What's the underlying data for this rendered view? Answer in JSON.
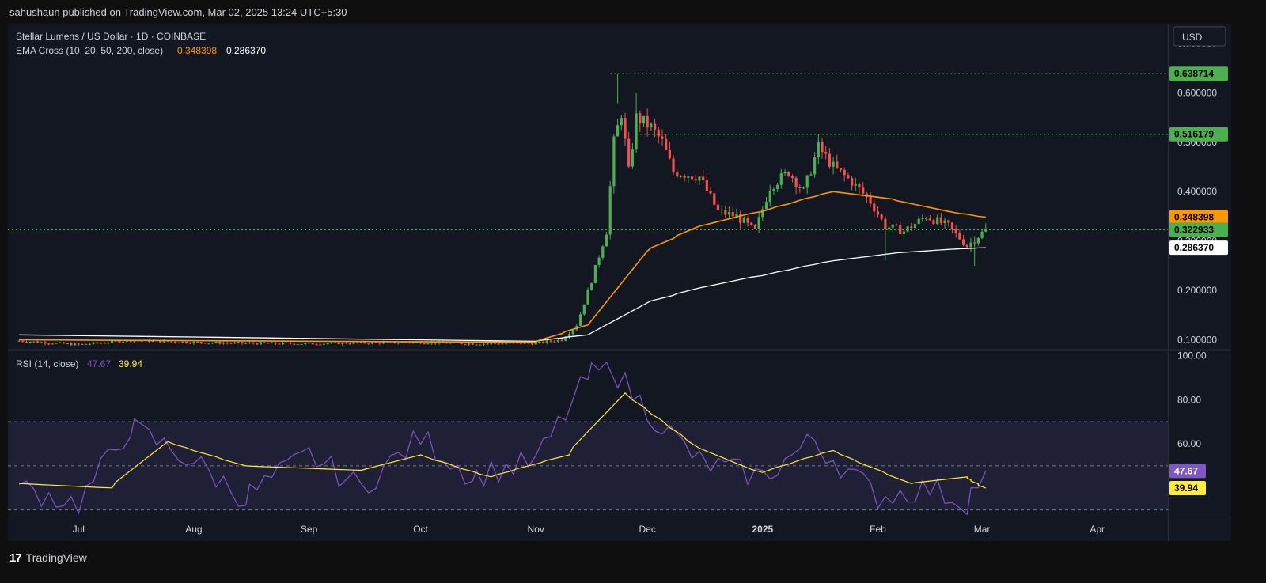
{
  "header": {
    "published": "sahushaun published on TradingView.com, Mar 02, 2025 13:24 UTC+5:30"
  },
  "footer": {
    "brand": "TradingView",
    "logo_glyph": "17"
  },
  "chart_data": {
    "type": "candlestick",
    "symbol_line": "Stellar Lumens / US Dollar · 1D · COINBASE",
    "indicator_label": "EMA Cross (10, 20, 50, 200, close)",
    "indicator_values": [
      "0.348398",
      "0.286370"
    ],
    "currency_button": "USD",
    "price_axis": {
      "ticks": [
        "0.700000",
        "0.600000",
        "0.500000",
        "0.400000",
        "0.300000",
        "0.200000",
        "0.100000"
      ],
      "range": [
        0.08,
        0.74
      ]
    },
    "price_tags": [
      {
        "label": "0.638714",
        "value": 0.638714,
        "color": "#4caf50",
        "text_color": "#000000"
      },
      {
        "label": "0.516179",
        "value": 0.516179,
        "color": "#4caf50",
        "text_color": "#000000"
      },
      {
        "label": "0.348398",
        "value": 0.348398,
        "color": "#ff9800",
        "text_color": "#000000"
      },
      {
        "label": "0.322933",
        "value": 0.322933,
        "color": "#4caf50",
        "text_color": "#000000"
      },
      {
        "label": "0.286370",
        "value": 0.28637,
        "color": "#ffffff",
        "text_color": "#000000"
      }
    ],
    "horizontal_levels": [
      0.638714,
      0.516179,
      0.322933
    ],
    "x_axis_labels": [
      "Jul",
      "Aug",
      "Sep",
      "Oct",
      "Nov",
      "Dec",
      "2025",
      "Feb",
      "Mar",
      "Apr"
    ],
    "ohlc_keypoints": [
      [
        "2024-06-15",
        0.098
      ],
      [
        "2024-07-01",
        0.09
      ],
      [
        "2024-07-15",
        0.099
      ],
      [
        "2024-08-01",
        0.095
      ],
      [
        "2024-08-15",
        0.093
      ],
      [
        "2024-09-01",
        0.092
      ],
      [
        "2024-09-15",
        0.094
      ],
      [
        "2024-10-01",
        0.095
      ],
      [
        "2024-10-15",
        0.092
      ],
      [
        "2024-11-01",
        0.093
      ],
      [
        "2024-11-08",
        0.1
      ],
      [
        "2024-11-12",
        0.13
      ],
      [
        "2024-11-16",
        0.22
      ],
      [
        "2024-11-20",
        0.32
      ],
      [
        "2024-11-22",
        0.5
      ],
      [
        "2024-11-24",
        0.56
      ],
      [
        "2024-11-26",
        0.44
      ],
      [
        "2024-11-28",
        0.55
      ],
      [
        "2024-12-02",
        0.53
      ],
      [
        "2024-12-05",
        0.5
      ],
      [
        "2024-12-08",
        0.44
      ],
      [
        "2024-12-15",
        0.43
      ],
      [
        "2024-12-20",
        0.36
      ],
      [
        "2024-12-25",
        0.35
      ],
      [
        "2024-12-30",
        0.32
      ],
      [
        "2025-01-03",
        0.41
      ],
      [
        "2025-01-08",
        0.44
      ],
      [
        "2025-01-12",
        0.4
      ],
      [
        "2025-01-16",
        0.49
      ],
      [
        "2025-01-20",
        0.45
      ],
      [
        "2025-01-25",
        0.42
      ],
      [
        "2025-01-30",
        0.38
      ],
      [
        "2025-02-03",
        0.33
      ],
      [
        "2025-02-08",
        0.32
      ],
      [
        "2025-02-14",
        0.35
      ],
      [
        "2025-02-20",
        0.33
      ],
      [
        "2025-02-25",
        0.29
      ],
      [
        "2025-02-28",
        0.31
      ],
      [
        "2025-03-02",
        0.322933
      ]
    ],
    "ema_50": [
      [
        "2024-06-15",
        0.1
      ],
      [
        "2024-11-01",
        0.095
      ],
      [
        "2024-11-15",
        0.13
      ],
      [
        "2024-12-01",
        0.28
      ],
      [
        "2024-12-15",
        0.33
      ],
      [
        "2025-01-01",
        0.36
      ],
      [
        "2025-01-20",
        0.4
      ],
      [
        "2025-02-05",
        0.385
      ],
      [
        "2025-02-20",
        0.36
      ],
      [
        "2025-03-02",
        0.348398
      ]
    ],
    "ema_200": [
      [
        "2024-06-15",
        0.11
      ],
      [
        "2024-11-01",
        0.097
      ],
      [
        "2024-11-15",
        0.11
      ],
      [
        "2024-12-01",
        0.175
      ],
      [
        "2024-12-15",
        0.205
      ],
      [
        "2025-01-01",
        0.23
      ],
      [
        "2025-01-20",
        0.26
      ],
      [
        "2025-02-05",
        0.275
      ],
      [
        "2025-02-20",
        0.283
      ],
      [
        "2025-03-02",
        0.28637
      ]
    ],
    "rsi": {
      "label": "RSI (14, close)",
      "values": [
        "47.67",
        "39.94"
      ],
      "axis_ticks": [
        "100.00",
        "80.00",
        "60.00"
      ],
      "tags": [
        {
          "label": "47.67",
          "value": 47.67,
          "color": "#7e57c2"
        },
        {
          "label": "39.94",
          "value": 39.94,
          "color": "#ffeb3b"
        }
      ],
      "bands": [
        70,
        50,
        30
      ],
      "range": [
        27,
        102
      ],
      "rsi_line": [
        [
          "2024-06-15",
          40
        ],
        [
          "2024-07-01",
          33
        ],
        [
          "2024-07-15",
          68
        ],
        [
          "2024-08-01",
          52
        ],
        [
          "2024-08-15",
          35
        ],
        [
          "2024-09-01",
          55
        ],
        [
          "2024-09-15",
          40
        ],
        [
          "2024-10-01",
          63
        ],
        [
          "2024-10-15",
          45
        ],
        [
          "2024-11-01",
          52
        ],
        [
          "2024-11-15",
          90
        ],
        [
          "2024-11-22",
          95
        ],
        [
          "2024-12-01",
          75
        ],
        [
          "2024-12-15",
          52
        ],
        [
          "2025-01-01",
          45
        ],
        [
          "2025-01-15",
          62
        ],
        [
          "2025-02-01",
          36
        ],
        [
          "2025-02-15",
          40
        ],
        [
          "2025-02-25",
          33
        ],
        [
          "2025-03-02",
          47.67
        ]
      ],
      "rsi_ma": [
        [
          "2024-06-15",
          42
        ],
        [
          "2024-07-10",
          40
        ],
        [
          "2024-07-25",
          61
        ],
        [
          "2024-08-15",
          50
        ],
        [
          "2024-09-15",
          48
        ],
        [
          "2024-10-01",
          55
        ],
        [
          "2024-10-20",
          45
        ],
        [
          "2024-11-10",
          55
        ],
        [
          "2024-11-25",
          83
        ],
        [
          "2024-12-15",
          58
        ],
        [
          "2025-01-01",
          47
        ],
        [
          "2025-01-20",
          57
        ],
        [
          "2025-02-10",
          42
        ],
        [
          "2025-02-25",
          45
        ],
        [
          "2025-03-02",
          39.94
        ]
      ]
    }
  }
}
